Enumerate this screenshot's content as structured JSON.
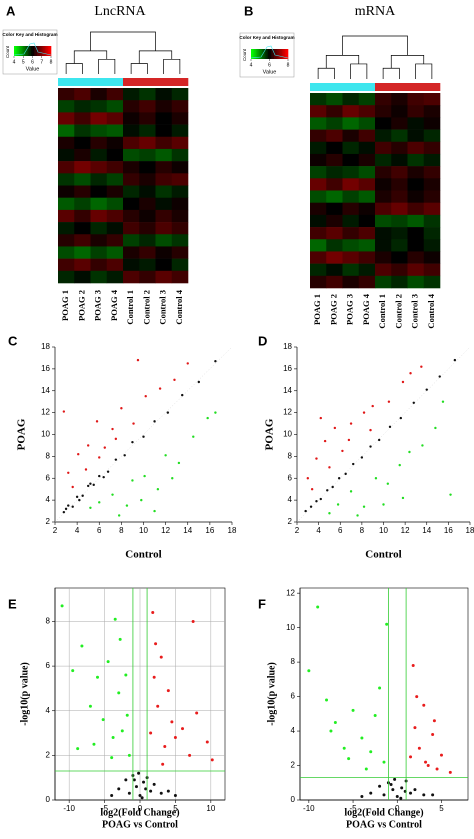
{
  "chart_data": [
    {
      "type": "heatmap",
      "panel_label": "A",
      "title": "LncRNA",
      "legend_title": "Color Key and Histogram",
      "legend_xlabel": "Value",
      "legend_ylabel": "Count",
      "legend_ticks": [
        4,
        5,
        6,
        7,
        8
      ],
      "vlim": [
        4,
        8
      ],
      "colors": [
        "#00ff00",
        "#000000",
        "#ff0000"
      ],
      "group_colors": [
        "#3ee6ee",
        "#d42626"
      ],
      "columns": [
        "POAG 1",
        "POAG 2",
        "POAG 3",
        "POAG 4",
        "Control 1",
        "Control 2",
        "Control 3",
        "Control 4"
      ],
      "values": [
        [
          6.4,
          6.6,
          6.2,
          6.5,
          5.8,
          5.6,
          5.9,
          5.7
        ],
        [
          5.5,
          5.7,
          5.6,
          5.4,
          6.3,
          6.5,
          6.2,
          6.4
        ],
        [
          6.8,
          6.5,
          6.9,
          6.7,
          6.1,
          6.3,
          6.0,
          6.2
        ],
        [
          5.2,
          5.6,
          5.4,
          5.3,
          5.9,
          5.7,
          6.0,
          5.8
        ],
        [
          6.2,
          6.0,
          6.3,
          6.1,
          6.6,
          6.8,
          6.5,
          6.7
        ],
        [
          5.9,
          6.2,
          5.8,
          6.0,
          5.4,
          5.5,
          5.3,
          5.6
        ],
        [
          6.6,
          6.9,
          6.7,
          6.5,
          6.2,
          6.0,
          6.3,
          6.1
        ],
        [
          5.6,
          5.4,
          5.7,
          5.5,
          6.4,
          6.2,
          6.5,
          6.6
        ],
        [
          6.1,
          6.3,
          6.0,
          6.2,
          5.7,
          5.9,
          5.6,
          5.8
        ],
        [
          5.3,
          5.5,
          5.2,
          5.4,
          6.0,
          6.2,
          5.9,
          6.1
        ],
        [
          6.7,
          6.4,
          6.8,
          6.6,
          6.3,
          6.1,
          6.4,
          6.2
        ],
        [
          5.8,
          6.0,
          5.7,
          5.9,
          6.5,
          6.3,
          6.6,
          6.4
        ],
        [
          6.3,
          6.5,
          6.2,
          6.4,
          5.5,
          5.7,
          5.4,
          5.6
        ],
        [
          5.4,
          5.2,
          5.5,
          5.3,
          6.2,
          6.4,
          6.1,
          6.3
        ],
        [
          6.5,
          6.7,
          6.4,
          6.6,
          5.9,
          5.8,
          6.0,
          5.7
        ],
        [
          5.7,
          5.9,
          5.6,
          5.8,
          6.6,
          6.4,
          6.7,
          6.5
        ]
      ]
    },
    {
      "type": "heatmap",
      "panel_label": "B",
      "title": "mRNA",
      "legend_title": "Color Key and Histogram",
      "legend_xlabel": "Value",
      "legend_ylabel": "Count",
      "legend_ticks": [
        4,
        6,
        8
      ],
      "vlim": [
        4,
        8
      ],
      "colors": [
        "#00ff00",
        "#000000",
        "#ff0000"
      ],
      "group_colors": [
        "#3ee6ee",
        "#d42626"
      ],
      "columns": [
        "POAG 1",
        "POAG 2",
        "POAG 3",
        "POAG 4",
        "Control 1",
        "Control 2",
        "Control 3",
        "Control 4"
      ],
      "values": [
        [
          5.6,
          5.4,
          5.7,
          5.5,
          6.4,
          6.2,
          6.5,
          6.6
        ],
        [
          6.7,
          6.4,
          6.8,
          6.6,
          6.3,
          6.1,
          6.4,
          6.2
        ],
        [
          5.3,
          5.5,
          5.2,
          5.4,
          6.0,
          6.2,
          5.9,
          6.1
        ],
        [
          6.4,
          6.6,
          6.2,
          6.5,
          5.8,
          5.6,
          5.9,
          5.7
        ],
        [
          5.8,
          6.0,
          5.7,
          5.9,
          6.5,
          6.3,
          6.6,
          6.4
        ],
        [
          6.1,
          6.3,
          6.0,
          6.2,
          5.7,
          5.9,
          5.6,
          5.8
        ],
        [
          5.5,
          5.7,
          5.6,
          5.4,
          6.3,
          6.5,
          6.2,
          6.4
        ],
        [
          6.8,
          6.5,
          6.9,
          6.7,
          6.1,
          6.3,
          6.0,
          6.2
        ],
        [
          5.4,
          5.2,
          5.5,
          5.3,
          6.2,
          6.4,
          6.1,
          6.3
        ],
        [
          6.2,
          6.0,
          6.3,
          6.1,
          6.6,
          6.8,
          6.5,
          6.7
        ],
        [
          5.9,
          6.2,
          5.8,
          6.0,
          5.4,
          5.5,
          5.3,
          5.6
        ],
        [
          6.5,
          6.7,
          6.4,
          6.6,
          5.9,
          5.8,
          6.0,
          5.7
        ],
        [
          5.2,
          5.6,
          5.4,
          5.3,
          5.9,
          5.7,
          6.0,
          5.8
        ],
        [
          6.6,
          6.9,
          6.7,
          6.5,
          6.2,
          6.0,
          6.3,
          6.1
        ],
        [
          5.7,
          5.9,
          5.6,
          5.8,
          6.6,
          6.4,
          6.7,
          6.5
        ],
        [
          6.3,
          6.5,
          6.2,
          6.4,
          5.5,
          5.7,
          5.4,
          5.6
        ]
      ]
    },
    {
      "type": "scatter",
      "panel_label": "C",
      "xlabel": "Control",
      "ylabel": "POAG",
      "xlim": [
        2,
        18
      ],
      "ylim": [
        2,
        18
      ],
      "xticks": [
        2,
        4,
        6,
        8,
        10,
        12,
        14,
        16,
        18
      ],
      "yticks": [
        2,
        4,
        6,
        8,
        10,
        12,
        14,
        16,
        18
      ],
      "series": [
        {
          "color": "#e01818",
          "x": [
            3.2,
            4.1,
            5.0,
            5.8,
            6.5,
            7.2,
            8.0,
            9.1,
            10.2,
            11.5,
            3.6,
            4.8,
            6.0,
            7.5,
            2.8,
            12.8,
            14.0,
            9.5
          ],
          "y": [
            6.5,
            8.2,
            9.0,
            11.2,
            8.8,
            10.5,
            12.4,
            11.0,
            13.5,
            14.2,
            5.2,
            6.8,
            7.9,
            9.6,
            12.1,
            15.0,
            16.5,
            16.8
          ]
        },
        {
          "color": "#22dd22",
          "x": [
            6.0,
            7.2,
            8.5,
            9.0,
            10.1,
            11.3,
            12.0,
            13.2,
            14.5,
            15.8,
            5.2,
            7.8,
            9.8,
            11.0,
            12.6,
            16.5
          ],
          "y": [
            3.8,
            4.5,
            3.5,
            5.8,
            6.2,
            5.0,
            8.1,
            7.4,
            9.8,
            11.5,
            3.3,
            2.6,
            4.0,
            3.0,
            6.0,
            12.0
          ]
        },
        {
          "color": "#111111",
          "x": [
            2.8,
            3.2,
            3.6,
            4.0,
            4.5,
            5.0,
            5.5,
            6.0,
            6.8,
            7.5,
            8.3,
            9.0,
            10.0,
            11.0,
            12.2,
            13.5,
            15.0,
            16.5,
            3.0,
            4.2,
            5.2,
            6.4
          ],
          "y": [
            2.9,
            3.5,
            3.4,
            4.3,
            4.4,
            5.3,
            5.4,
            6.2,
            6.6,
            7.7,
            8.1,
            9.3,
            9.8,
            11.2,
            12.0,
            13.6,
            14.8,
            16.7,
            3.2,
            4.0,
            5.5,
            6.1
          ]
        }
      ]
    },
    {
      "type": "scatter",
      "panel_label": "D",
      "xlabel": "Control",
      "ylabel": "POAG",
      "xlim": [
        2,
        18
      ],
      "ylim": [
        2,
        18
      ],
      "xticks": [
        2,
        4,
        6,
        8,
        10,
        12,
        14,
        16,
        18
      ],
      "yticks": [
        2,
        4,
        6,
        8,
        10,
        12,
        14,
        16,
        18
      ],
      "series": [
        {
          "color": "#e01818",
          "x": [
            3.0,
            3.8,
            4.6,
            5.5,
            6.2,
            7.0,
            8.2,
            9.0,
            10.5,
            11.8,
            3.4,
            5.0,
            6.8,
            12.5,
            13.5,
            8.8,
            4.2
          ],
          "y": [
            6.0,
            7.8,
            9.4,
            10.6,
            8.5,
            11.0,
            12.0,
            12.6,
            13.0,
            14.8,
            5.0,
            7.0,
            9.5,
            15.6,
            16.2,
            10.4,
            11.5
          ]
        },
        {
          "color": "#22dd22",
          "x": [
            5.8,
            7.0,
            8.2,
            9.3,
            10.4,
            11.5,
            12.4,
            13.6,
            14.8,
            5.0,
            7.6,
            10.0,
            11.8,
            15.5,
            16.2
          ],
          "y": [
            3.6,
            4.8,
            3.4,
            6.0,
            5.5,
            7.2,
            8.4,
            9.0,
            10.6,
            2.8,
            2.6,
            3.6,
            4.2,
            13.0,
            4.5
          ]
        },
        {
          "color": "#111111",
          "x": [
            2.8,
            3.3,
            3.8,
            4.2,
            4.8,
            5.3,
            5.9,
            6.5,
            7.2,
            8.0,
            8.8,
            9.6,
            10.6,
            11.6,
            12.8,
            14.0,
            15.2,
            16.6
          ],
          "y": [
            3.0,
            3.4,
            3.9,
            4.1,
            4.9,
            5.2,
            6.0,
            6.4,
            7.3,
            7.9,
            8.9,
            9.5,
            10.7,
            11.5,
            12.9,
            14.1,
            15.3,
            16.8
          ]
        }
      ]
    },
    {
      "type": "volcano",
      "panel_label": "E",
      "xlabel": "log2(Fold Change)",
      "subtitle": "POAG vs Control",
      "ylabel": "-log10(p value)",
      "xlim": [
        -12,
        12
      ],
      "ylim": [
        0,
        9.5
      ],
      "xticks": [
        -10,
        -5,
        0,
        5,
        10
      ],
      "yticks": [
        0,
        2,
        4,
        6,
        8
      ],
      "grid": true,
      "fc_cut": [
        -1,
        1
      ],
      "p_cut": 1.3,
      "cut_color": "#33cc33",
      "series": [
        {
          "color": "#22ee22",
          "x": [
            -11,
            -9.5,
            -8.2,
            -7.0,
            -6.0,
            -5.2,
            -4.5,
            -3.8,
            -3.0,
            -2.5,
            -2.0,
            -1.5,
            -6.5,
            -4.0,
            -2.8,
            -1.8,
            -8.8,
            -3.5
          ],
          "y": [
            8.7,
            5.8,
            6.9,
            4.2,
            5.5,
            3.6,
            6.2,
            2.8,
            4.8,
            3.1,
            5.6,
            2.0,
            2.5,
            1.9,
            7.2,
            3.8,
            2.3,
            8.1
          ]
        },
        {
          "color": "#e81c1c",
          "x": [
            1.5,
            2.0,
            2.5,
            3.0,
            3.5,
            4.0,
            4.5,
            5.0,
            6.0,
            7.0,
            8.0,
            9.5,
            10.2,
            2.2,
            3.2,
            1.8,
            7.5
          ],
          "y": [
            3.0,
            5.5,
            4.2,
            6.4,
            2.4,
            4.9,
            3.5,
            2.8,
            3.2,
            2.0,
            3.9,
            2.6,
            1.8,
            7.0,
            1.6,
            8.4,
            8.0
          ]
        },
        {
          "color": "#111111",
          "x": [
            -3,
            -2,
            -1.5,
            -1,
            -0.5,
            0,
            0.5,
            1,
            1.5,
            2,
            3,
            -4,
            4,
            -0.2,
            0.3,
            0.8,
            -0.8,
            5
          ],
          "y": [
            0.5,
            0.9,
            0.3,
            1.1,
            0.6,
            0.2,
            0.8,
            1.0,
            0.4,
            0.7,
            0.3,
            0.2,
            0.4,
            1.2,
            0.1,
            0.5,
            0.9,
            0.2
          ]
        }
      ]
    },
    {
      "type": "volcano",
      "panel_label": "F",
      "xlabel": "log2(Fold Change)",
      "subtitle": "POAG vs Control",
      "ylabel": "-log10(p value)",
      "xlim": [
        -11,
        8
      ],
      "ylim": [
        0,
        12.3
      ],
      "xticks": [
        -10,
        -5,
        0,
        5
      ],
      "yticks": [
        0,
        2,
        4,
        6,
        8,
        10,
        12
      ],
      "grid": false,
      "fc_cut": [
        -1,
        1
      ],
      "p_cut": 1.3,
      "cut_color": "#33cc33",
      "series": [
        {
          "color": "#22ee22",
          "x": [
            -10,
            -9,
            -8,
            -7,
            -6,
            -5,
            -4,
            -3,
            -2.5,
            -2,
            -1.5,
            -5.5,
            -3.5,
            -1.2,
            -7.5
          ],
          "y": [
            7.5,
            11.2,
            5.8,
            4.5,
            3.0,
            5.2,
            3.6,
            2.8,
            4.9,
            6.5,
            2.2,
            2.4,
            1.8,
            10.2,
            4.0
          ]
        },
        {
          "color": "#e81c1c",
          "x": [
            1.5,
            2,
            2.5,
            3,
            3.5,
            4,
            4.5,
            5,
            6,
            2.2,
            3.2,
            1.8,
            4.2
          ],
          "y": [
            2.5,
            4.2,
            3.0,
            5.5,
            2.0,
            3.8,
            1.8,
            2.6,
            1.6,
            6.0,
            2.2,
            7.8,
            4.6
          ]
        },
        {
          "color": "#111111",
          "x": [
            -3,
            -2,
            -1.5,
            -1,
            -0.5,
            0,
            0.5,
            1,
            1.5,
            2,
            3,
            -4,
            4,
            -0.3,
            0.4,
            0.9,
            -0.7
          ],
          "y": [
            0.4,
            0.8,
            0.3,
            1.0,
            0.6,
            0.2,
            0.7,
            1.1,
            0.4,
            0.6,
            0.3,
            0.2,
            0.3,
            1.2,
            0.1,
            0.5,
            0.9
          ]
        }
      ]
    }
  ]
}
